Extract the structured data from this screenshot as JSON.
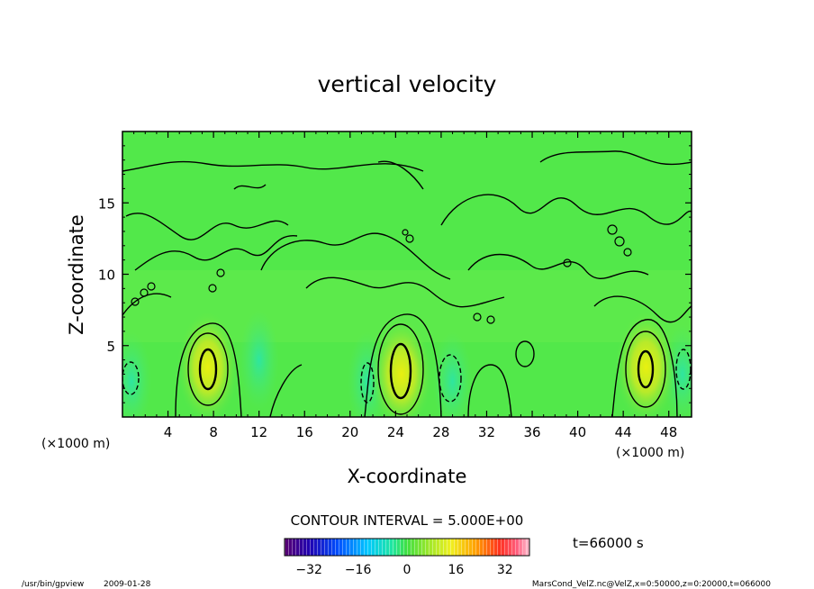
{
  "chart_data": {
    "type": "contour",
    "title": "vertical velocity",
    "xlabel": "X-coordinate",
    "ylabel": "Z-coordinate",
    "x_unit_left": "(×1000 m)",
    "x_unit_right": "(×1000 m)",
    "xlim": [
      0,
      50
    ],
    "ylim": [
      0,
      20
    ],
    "x_ticks": [
      4,
      8,
      12,
      16,
      20,
      24,
      28,
      32,
      36,
      40,
      44,
      48
    ],
    "y_ticks": [
      5,
      10,
      15
    ],
    "contour_interval_text": "CONTOUR INTERVAL = 5.000E+00",
    "time_text": "t=66000 s",
    "colorbar": {
      "range": [
        -40,
        40
      ],
      "ticks": [
        -32,
        -16,
        0,
        16,
        32
      ],
      "tick_labels": [
        "−32",
        "−16",
        "0",
        "16",
        "32"
      ]
    },
    "updraft_cores": [
      {
        "x": 7.5,
        "z": 3.5,
        "peak": 15
      },
      {
        "x": 24.5,
        "z": 3.0,
        "peak": 18
      },
      {
        "x": 46,
        "z": 3.5,
        "peak": 15
      }
    ],
    "downdraft_regions": [
      {
        "x": 0.8,
        "z": 2.5
      },
      {
        "x": 12,
        "z": 4
      },
      {
        "x": 21.5,
        "z": 2.5
      },
      {
        "x": 29,
        "z": 2.5
      },
      {
        "x": 49.2,
        "z": 3
      }
    ]
  },
  "footer": {
    "program": "/usr/bin/gpview",
    "date": "2009-01-28",
    "source": "MarsCond_VelZ.nc@VelZ,x=0:50000,z=0:20000,t=066000"
  }
}
